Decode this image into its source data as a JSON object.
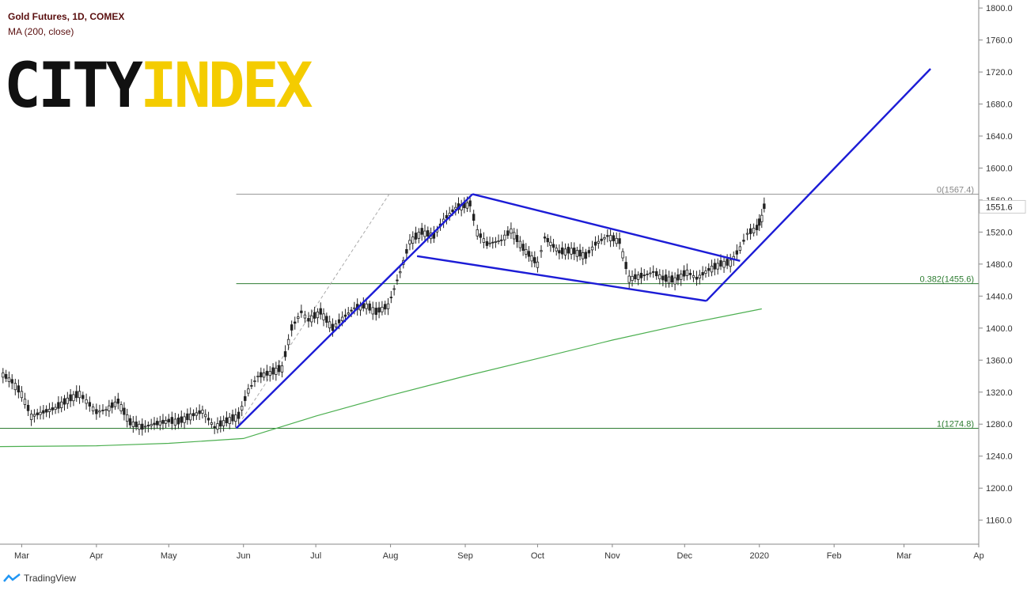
{
  "header": {
    "title": "Gold Futures, 1D, COMEX",
    "indicator": "MA (200, close)"
  },
  "logo": {
    "part1": "CITY",
    "part2": "INDEX"
  },
  "footer": {
    "brand": "TradingView"
  },
  "colors": {
    "ma": "#4caf50",
    "trend": "#1c1cd6",
    "fib": "#2e7d32",
    "grid": "#e6e6e6",
    "axis_text": "#333333"
  },
  "chart_data": {
    "type": "line",
    "title": "Gold Futures, 1D, COMEX",
    "xlabel": "",
    "ylabel": "",
    "ylim": [
      1130,
      1810
    ],
    "y_ticks": [
      1800,
      1760,
      1720,
      1680,
      1640,
      1600,
      1560,
      1520,
      1480,
      1440,
      1400,
      1360,
      1320,
      1280,
      1240,
      1200,
      1160
    ],
    "x_ticks": [
      "Mar",
      "Apr",
      "May",
      "Jun",
      "Jul",
      "Aug",
      "Sep",
      "Oct",
      "Nov",
      "Dec",
      "2020",
      "Feb",
      "Mar",
      "Ap"
    ],
    "x_tick_dates": [
      "2019-03-01",
      "2019-04-01",
      "2019-05-01",
      "2019-06-01",
      "2019-07-01",
      "2019-08-01",
      "2019-09-01",
      "2019-10-01",
      "2019-11-01",
      "2019-12-01",
      "2020-01-01",
      "2020-02-01",
      "2020-03-01",
      "2020-04-01"
    ],
    "x_range": [
      "2019-02-20",
      "2020-04-01"
    ],
    "price_label": "1551.6",
    "price_series": [
      [
        "2019-02-20",
        1345
      ],
      [
        "2019-02-25",
        1333
      ],
      [
        "2019-03-01",
        1318
      ],
      [
        "2019-03-05",
        1290
      ],
      [
        "2019-03-10",
        1295
      ],
      [
        "2019-03-15",
        1300
      ],
      [
        "2019-03-20",
        1310
      ],
      [
        "2019-03-25",
        1318
      ],
      [
        "2019-04-01",
        1295
      ],
      [
        "2019-04-05",
        1298
      ],
      [
        "2019-04-10",
        1308
      ],
      [
        "2019-04-15",
        1282
      ],
      [
        "2019-04-20",
        1276
      ],
      [
        "2019-04-25",
        1280
      ],
      [
        "2019-05-01",
        1284
      ],
      [
        "2019-05-05",
        1283
      ],
      [
        "2019-05-10",
        1290
      ],
      [
        "2019-05-15",
        1296
      ],
      [
        "2019-05-20",
        1276
      ],
      [
        "2019-05-25",
        1284
      ],
      [
        "2019-05-30",
        1290
      ],
      [
        "2019-06-03",
        1322
      ],
      [
        "2019-06-07",
        1340
      ],
      [
        "2019-06-12",
        1344
      ],
      [
        "2019-06-17",
        1350
      ],
      [
        "2019-06-21",
        1400
      ],
      [
        "2019-06-25",
        1420
      ],
      [
        "2019-06-28",
        1410
      ],
      [
        "2019-07-03",
        1420
      ],
      [
        "2019-07-08",
        1400
      ],
      [
        "2019-07-12",
        1412
      ],
      [
        "2019-07-17",
        1425
      ],
      [
        "2019-07-22",
        1428
      ],
      [
        "2019-07-26",
        1420
      ],
      [
        "2019-07-31",
        1428
      ],
      [
        "2019-08-05",
        1470
      ],
      [
        "2019-08-09",
        1508
      ],
      [
        "2019-08-14",
        1520
      ],
      [
        "2019-08-19",
        1515
      ],
      [
        "2019-08-23",
        1535
      ],
      [
        "2019-08-28",
        1550
      ],
      [
        "2019-09-03",
        1555
      ],
      [
        "2019-09-06",
        1520
      ],
      [
        "2019-09-10",
        1505
      ],
      [
        "2019-09-16",
        1510
      ],
      [
        "2019-09-20",
        1522
      ],
      [
        "2019-09-25",
        1500
      ],
      [
        "2019-10-01",
        1480
      ],
      [
        "2019-10-04",
        1513
      ],
      [
        "2019-10-10",
        1495
      ],
      [
        "2019-10-15",
        1497
      ],
      [
        "2019-10-21",
        1490
      ],
      [
        "2019-10-25",
        1505
      ],
      [
        "2019-10-30",
        1515
      ],
      [
        "2019-11-04",
        1508
      ],
      [
        "2019-11-08",
        1462
      ],
      [
        "2019-11-13",
        1465
      ],
      [
        "2019-11-18",
        1470
      ],
      [
        "2019-11-22",
        1462
      ],
      [
        "2019-11-27",
        1460
      ],
      [
        "2019-12-02",
        1470
      ],
      [
        "2019-12-06",
        1462
      ],
      [
        "2019-12-11",
        1473
      ],
      [
        "2019-12-16",
        1480
      ],
      [
        "2019-12-20",
        1482
      ],
      [
        "2019-12-24",
        1500
      ],
      [
        "2019-12-27",
        1518
      ],
      [
        "2019-12-31",
        1525
      ],
      [
        "2020-01-02",
        1538
      ],
      [
        "2020-01-03",
        1551.6
      ]
    ],
    "series": [
      {
        "name": "MA (200, close)",
        "points": [
          [
            "2019-02-20",
            1252
          ],
          [
            "2019-04-01",
            1253
          ],
          [
            "2019-05-01",
            1256
          ],
          [
            "2019-06-01",
            1262
          ],
          [
            "2019-07-01",
            1290
          ],
          [
            "2019-08-01",
            1316
          ],
          [
            "2019-09-01",
            1340
          ],
          [
            "2019-10-01",
            1362
          ],
          [
            "2019-11-01",
            1385
          ],
          [
            "2019-12-01",
            1405
          ],
          [
            "2020-01-02",
            1424
          ]
        ]
      }
    ],
    "fib_levels": [
      {
        "label": "0(1567.4)",
        "value": 1567.4
      },
      {
        "label": "0.382(1455.6)",
        "value": 1455.6
      },
      {
        "label": "1(1274.8)",
        "value": 1274.8
      }
    ],
    "trendlines": [
      {
        "from": [
          "2019-05-29",
          1274.8
        ],
        "to": [
          "2019-09-04",
          1567.4
        ]
      },
      {
        "from": [
          "2019-09-04",
          1567.4
        ],
        "to": [
          "2019-12-24",
          1484
        ]
      },
      {
        "from": [
          "2019-08-12",
          1490
        ],
        "to": [
          "2019-12-10",
          1434
        ]
      },
      {
        "from": [
          "2019-12-10",
          1434
        ],
        "to": [
          "2020-03-12",
          1724
        ]
      }
    ],
    "dashed_line": {
      "from": [
        "2019-05-29",
        1274.8
      ],
      "to": [
        "2019-08-01",
        1570
      ]
    },
    "grid": false
  }
}
